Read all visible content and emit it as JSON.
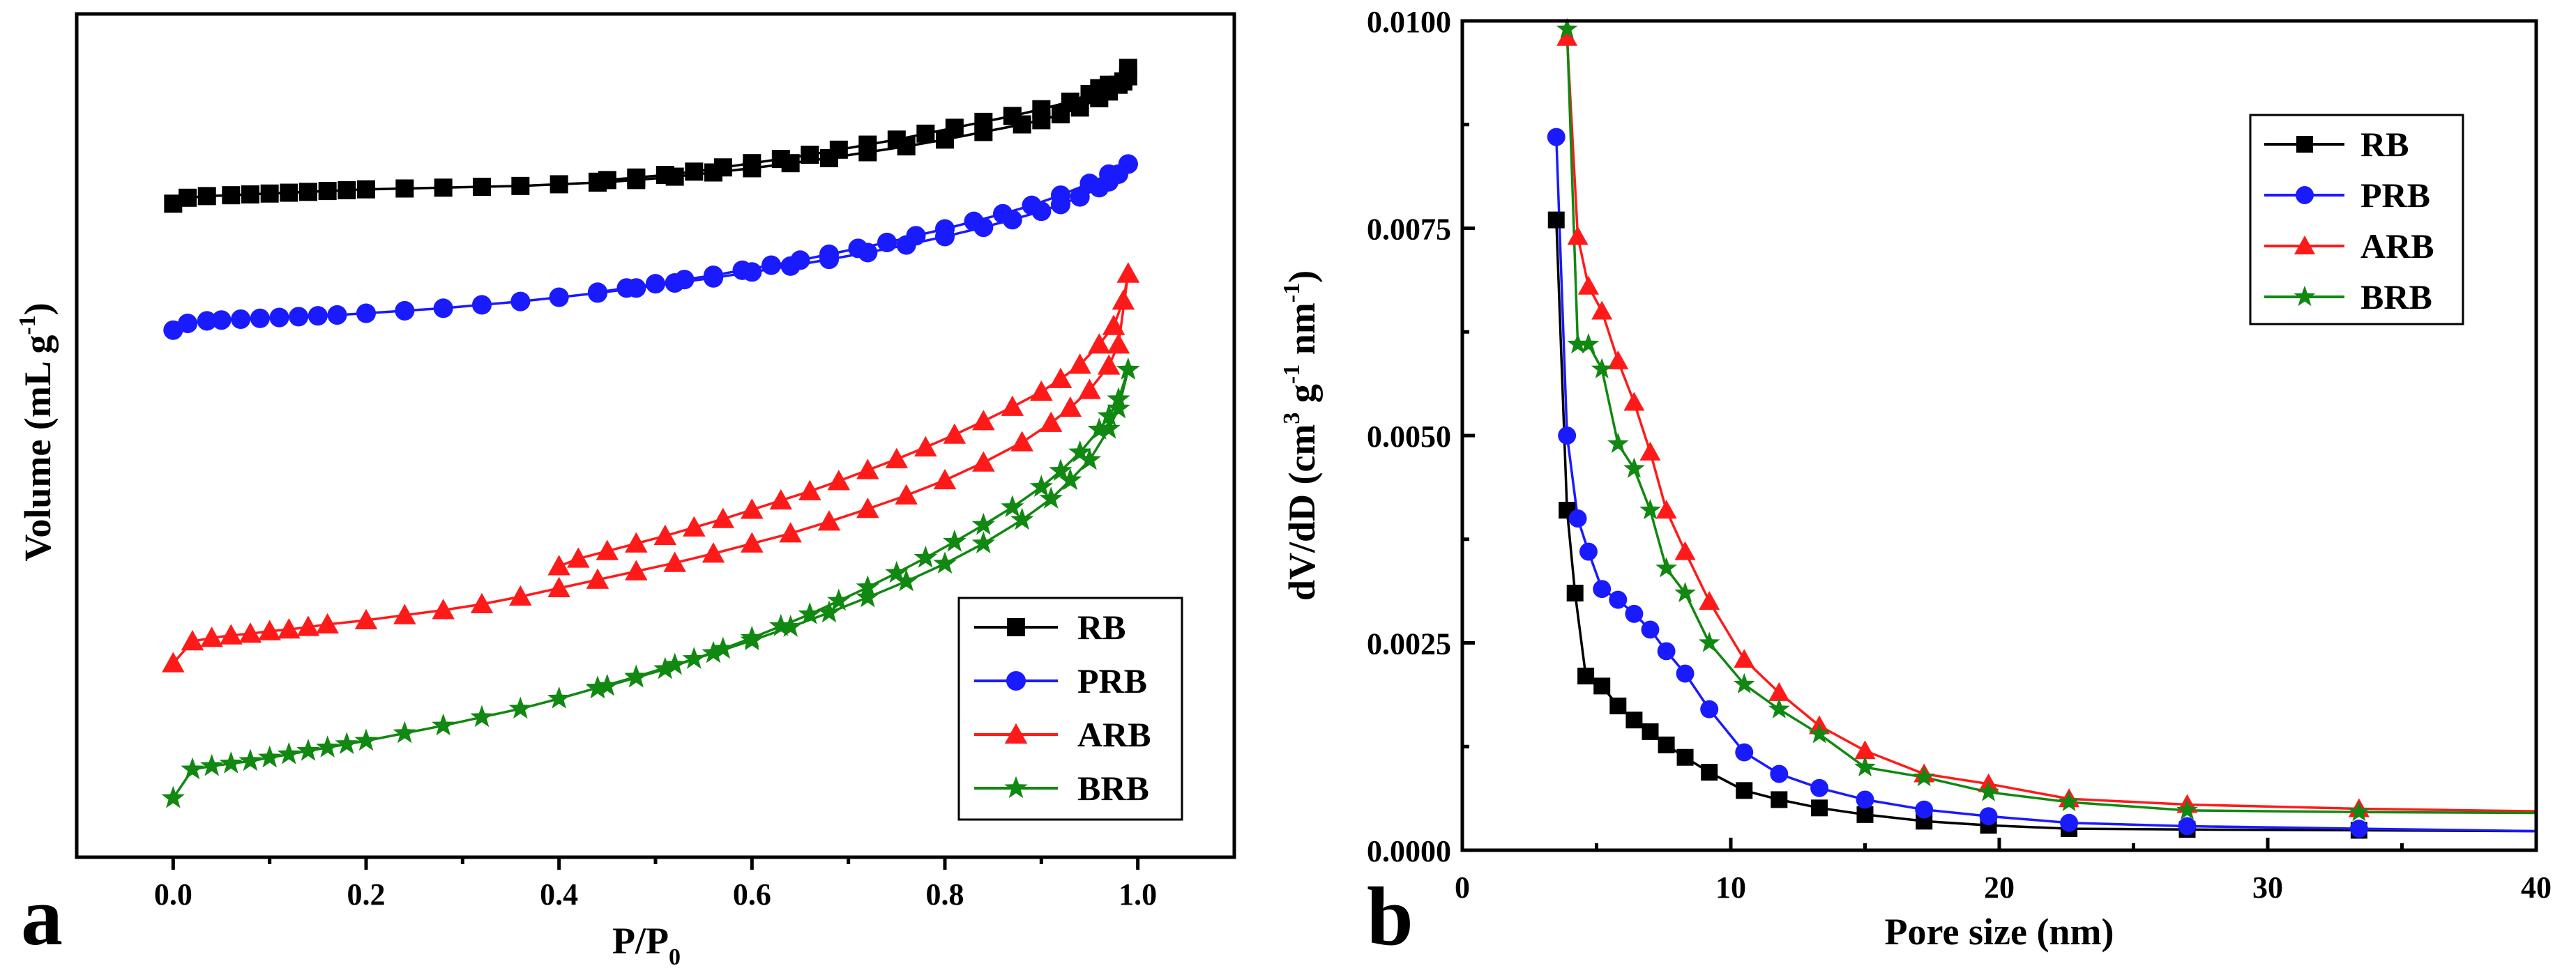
{
  "colors": {
    "RB": "#000000",
    "PRB": "#1a1aff",
    "ARB": "#ff1a1a",
    "BRB": "#118811"
  },
  "chart_data": [
    {
      "type": "line",
      "panel": "a",
      "xlabel": "P/P",
      "xlabel_sub": "0",
      "ylabel": "Volume (mL g",
      "ylabel_sup": "-1",
      "ylabel_end": ")",
      "xlim": [
        -0.1,
        1.1
      ],
      "ylim": [
        0,
        100
      ],
      "xticks": [
        "0.0",
        "0.2",
        "0.4",
        "0.6",
        "0.8",
        "1.0"
      ],
      "xtick_values": [
        0,
        0.2,
        0.4,
        0.6,
        0.8,
        1.0
      ],
      "legend_position": "bottom-right",
      "series": [
        {
          "name": "RB",
          "marker": "square",
          "adsorption": {
            "x": [
              0,
              0.015,
              0.035,
              0.06,
              0.08,
              0.1,
              0.12,
              0.14,
              0.16,
              0.18,
              0.2,
              0.24,
              0.28,
              0.32,
              0.36,
              0.4,
              0.44,
              0.48,
              0.52,
              0.56,
              0.6,
              0.64,
              0.68,
              0.72,
              0.76,
              0.8,
              0.84,
              0.88,
              0.9,
              0.92,
              0.94,
              0.96,
              0.97,
              0.98,
              0.99
            ],
            "y": [
              77.5,
              78.2,
              78.4,
              78.5,
              78.6,
              78.7,
              78.8,
              78.9,
              79.0,
              79.1,
              79.2,
              79.3,
              79.4,
              79.5,
              79.6,
              79.8,
              80.0,
              80.3,
              80.7,
              81.2,
              81.7,
              82.3,
              82.9,
              83.6,
              84.3,
              85.1,
              86.0,
              86.9,
              87.4,
              88.1,
              88.9,
              90.0,
              90.8,
              91.6,
              92.6
            ]
          },
          "desorption": {
            "x": [
              0.99,
              0.985,
              0.97,
              0.96,
              0.95,
              0.93,
              0.9,
              0.87,
              0.84,
              0.81,
              0.78,
              0.75,
              0.72,
              0.69,
              0.66,
              0.63,
              0.6,
              0.57,
              0.54,
              0.51,
              0.48,
              0.45,
              0.44
            ],
            "y": [
              93.6,
              92.0,
              91.6,
              91.2,
              90.5,
              89.6,
              88.7,
              87.9,
              87.2,
              86.5,
              85.8,
              85.1,
              84.5,
              83.9,
              83.3,
              82.8,
              82.3,
              81.8,
              81.3,
              80.9,
              80.6,
              80.3,
              80.1
            ]
          }
        },
        {
          "name": "PRB",
          "marker": "circle",
          "adsorption": {
            "x": [
              0,
              0.015,
              0.035,
              0.05,
              0.07,
              0.09,
              0.11,
              0.13,
              0.15,
              0.17,
              0.2,
              0.24,
              0.28,
              0.32,
              0.36,
              0.4,
              0.44,
              0.48,
              0.52,
              0.56,
              0.6,
              0.64,
              0.68,
              0.72,
              0.76,
              0.8,
              0.84,
              0.87,
              0.9,
              0.92,
              0.94,
              0.96,
              0.97,
              0.98,
              0.99
            ],
            "y": [
              62.5,
              63.3,
              63.6,
              63.7,
              63.8,
              63.9,
              64.0,
              64.1,
              64.2,
              64.3,
              64.5,
              64.8,
              65.1,
              65.5,
              65.9,
              66.4,
              66.9,
              67.5,
              68.1,
              68.7,
              69.4,
              70.1,
              70.9,
              71.7,
              72.6,
              73.6,
              74.7,
              75.6,
              76.6,
              77.4,
              78.3,
              79.4,
              80.1,
              81.0,
              82.2
            ]
          },
          "desorption": {
            "x": [
              0.99,
              0.97,
              0.95,
              0.92,
              0.89,
              0.86,
              0.83,
              0.8,
              0.77,
              0.74,
              0.71,
              0.68,
              0.65,
              0.62,
              0.59,
              0.56,
              0.53,
              0.5,
              0.47,
              0.44
            ],
            "y": [
              82.2,
              81.0,
              79.9,
              78.5,
              77.3,
              76.3,
              75.4,
              74.5,
              73.7,
              72.9,
              72.2,
              71.5,
              70.8,
              70.2,
              69.6,
              69.0,
              68.5,
              68.0,
              67.5,
              67.0
            ]
          }
        },
        {
          "name": "ARB",
          "marker": "triangle",
          "adsorption": {
            "x": [
              0,
              0.02,
              0.04,
              0.06,
              0.08,
              0.1,
              0.12,
              0.14,
              0.16,
              0.2,
              0.24,
              0.28,
              0.32,
              0.36,
              0.4,
              0.44,
              0.48,
              0.52,
              0.56,
              0.6,
              0.64,
              0.68,
              0.72,
              0.76,
              0.8,
              0.84,
              0.88,
              0.91,
              0.93,
              0.95,
              0.97,
              0.98,
              0.99
            ],
            "y": [
              23.0,
              25.6,
              26.0,
              26.3,
              26.5,
              26.8,
              27.0,
              27.3,
              27.6,
              28.1,
              28.7,
              29.3,
              30.0,
              30.9,
              31.9,
              32.9,
              33.9,
              34.9,
              36.0,
              37.2,
              38.4,
              39.8,
              41.3,
              42.9,
              44.7,
              46.8,
              49.2,
              51.5,
              53.3,
              55.4,
              58.3,
              60.8,
              69.2
            ]
          },
          "desorption": {
            "x": [
              0.99,
              0.985,
              0.975,
              0.96,
              0.94,
              0.92,
              0.9,
              0.87,
              0.84,
              0.81,
              0.78,
              0.75,
              0.72,
              0.69,
              0.66,
              0.63,
              0.6,
              0.57,
              0.54,
              0.51,
              0.48,
              0.45,
              0.42,
              0.4
            ],
            "y": [
              69.2,
              66.0,
              63.0,
              60.8,
              58.4,
              56.7,
              55.2,
              53.4,
              51.7,
              50.1,
              48.6,
              47.2,
              45.9,
              44.6,
              43.4,
              42.3,
              41.2,
              40.1,
              39.1,
              38.1,
              37.2,
              36.3,
              35.4,
              34.5
            ]
          }
        },
        {
          "name": "BRB",
          "marker": "star",
          "adsorption": {
            "x": [
              0,
              0.02,
              0.04,
              0.06,
              0.08,
              0.1,
              0.12,
              0.14,
              0.16,
              0.18,
              0.2,
              0.24,
              0.28,
              0.32,
              0.36,
              0.4,
              0.44,
              0.48,
              0.52,
              0.56,
              0.6,
              0.64,
              0.68,
              0.72,
              0.76,
              0.8,
              0.84,
              0.88,
              0.91,
              0.93,
              0.95,
              0.97,
              0.98,
              0.99
            ],
            "y": [
              7.0,
              10.4,
              10.8,
              11.1,
              11.4,
              11.8,
              12.2,
              12.6,
              13.0,
              13.4,
              13.8,
              14.7,
              15.6,
              16.6,
              17.6,
              18.8,
              20.1,
              21.4,
              22.8,
              24.2,
              25.7,
              27.3,
              29.0,
              30.8,
              32.7,
              34.8,
              37.2,
              40.0,
              42.5,
              44.7,
              47.1,
              50.8,
              53.2,
              57.8
            ]
          },
          "desorption": {
            "x": [
              0.99,
              0.98,
              0.97,
              0.96,
              0.94,
              0.92,
              0.9,
              0.87,
              0.84,
              0.81,
              0.78,
              0.75,
              0.72,
              0.69,
              0.66,
              0.63,
              0.6,
              0.57,
              0.54,
              0.51,
              0.48,
              0.45,
              0.44
            ],
            "y": [
              57.8,
              54.3,
              52.3,
              50.7,
              48.0,
              45.8,
              43.9,
              41.5,
              39.4,
              37.4,
              35.5,
              33.7,
              32.0,
              30.4,
              28.8,
              27.4,
              26.0,
              24.7,
              23.5,
              22.3,
              21.3,
              20.3,
              20.0
            ]
          }
        }
      ]
    },
    {
      "type": "line",
      "panel": "b",
      "xlabel": "Pore size (nm)",
      "ylabel": "dV/dD (cm",
      "ylabel_sup1": "3",
      "ylabel_mid": " g",
      "ylabel_sup2": "-1",
      "ylabel_mid2": " nm",
      "ylabel_sup3": "-1",
      "ylabel_end": ")",
      "xlim": [
        0,
        40
      ],
      "ylim": [
        0,
        0.01
      ],
      "xticks": [
        "0",
        "10",
        "20",
        "30",
        "40"
      ],
      "xtick_values": [
        0,
        10,
        20,
        30,
        40
      ],
      "yticks": [
        "0.0000",
        "0.0025",
        "0.0050",
        "0.0075",
        "0.0100"
      ],
      "ytick_values": [
        0,
        0.0025,
        0.005,
        0.0075,
        0.01
      ],
      "legend_position": "top-right",
      "series": [
        {
          "name": "RB",
          "marker": "square",
          "x": [
            3.5,
            3.9,
            4.2,
            4.6,
            5.2,
            5.8,
            6.4,
            7.0,
            7.6,
            8.3,
            9.2,
            10.5,
            11.8,
            13.3,
            15.0,
            17.2,
            19.6,
            22.6,
            27.0,
            33.4,
            40.0
          ],
          "y": [
            0.0076,
            0.0041,
            0.0031,
            0.0021,
            0.00198,
            0.00174,
            0.00157,
            0.00143,
            0.00127,
            0.00112,
            0.00094,
            0.00072,
            0.00061,
            0.00051,
            0.00043,
            0.00035,
            0.0003,
            0.00026,
            0.00025,
            0.00024,
            0.00023
          ]
        },
        {
          "name": "PRB",
          "marker": "circle",
          "x": [
            3.5,
            3.9,
            4.3,
            4.7,
            5.2,
            5.8,
            6.4,
            7.0,
            7.6,
            8.3,
            9.2,
            10.5,
            11.8,
            13.3,
            15.0,
            17.2,
            19.6,
            22.6,
            27.0,
            33.4,
            40.0
          ],
          "y": [
            0.0086,
            0.005,
            0.004,
            0.0036,
            0.00315,
            0.00302,
            0.00285,
            0.00266,
            0.0024,
            0.00213,
            0.0017,
            0.00118,
            0.00092,
            0.00075,
            0.00061,
            0.00049,
            0.00041,
            0.00033,
            0.00029,
            0.00026,
            0.00023
          ]
        },
        {
          "name": "ARB",
          "marker": "triangle",
          "x": [
            3.9,
            4.3,
            4.7,
            5.2,
            5.8,
            6.4,
            7.0,
            7.6,
            8.3,
            9.2,
            10.5,
            11.8,
            13.3,
            15.0,
            17.2,
            19.6,
            22.6,
            27.0,
            33.4,
            40.0
          ],
          "y": [
            0.0098,
            0.0074,
            0.0068,
            0.0065,
            0.0059,
            0.0054,
            0.0048,
            0.0041,
            0.0036,
            0.003,
            0.0023,
            0.0019,
            0.0015,
            0.0012,
            0.00092,
            0.0008,
            0.00062,
            0.00055,
            0.0005,
            0.00047
          ]
        },
        {
          "name": "BRB",
          "marker": "star",
          "x": [
            3.9,
            4.3,
            4.7,
            5.2,
            5.8,
            6.4,
            7.0,
            7.6,
            8.3,
            9.2,
            10.5,
            11.8,
            13.3,
            15.0,
            17.2,
            19.6,
            22.6,
            27.0,
            33.4,
            40.0
          ],
          "y": [
            0.0099,
            0.0061,
            0.0061,
            0.0058,
            0.0049,
            0.0046,
            0.0041,
            0.0034,
            0.0031,
            0.0025,
            0.002,
            0.0017,
            0.0014,
            0.001,
            0.00088,
            0.0007,
            0.00058,
            0.00048,
            0.00046,
            0.00045
          ]
        }
      ]
    }
  ]
}
